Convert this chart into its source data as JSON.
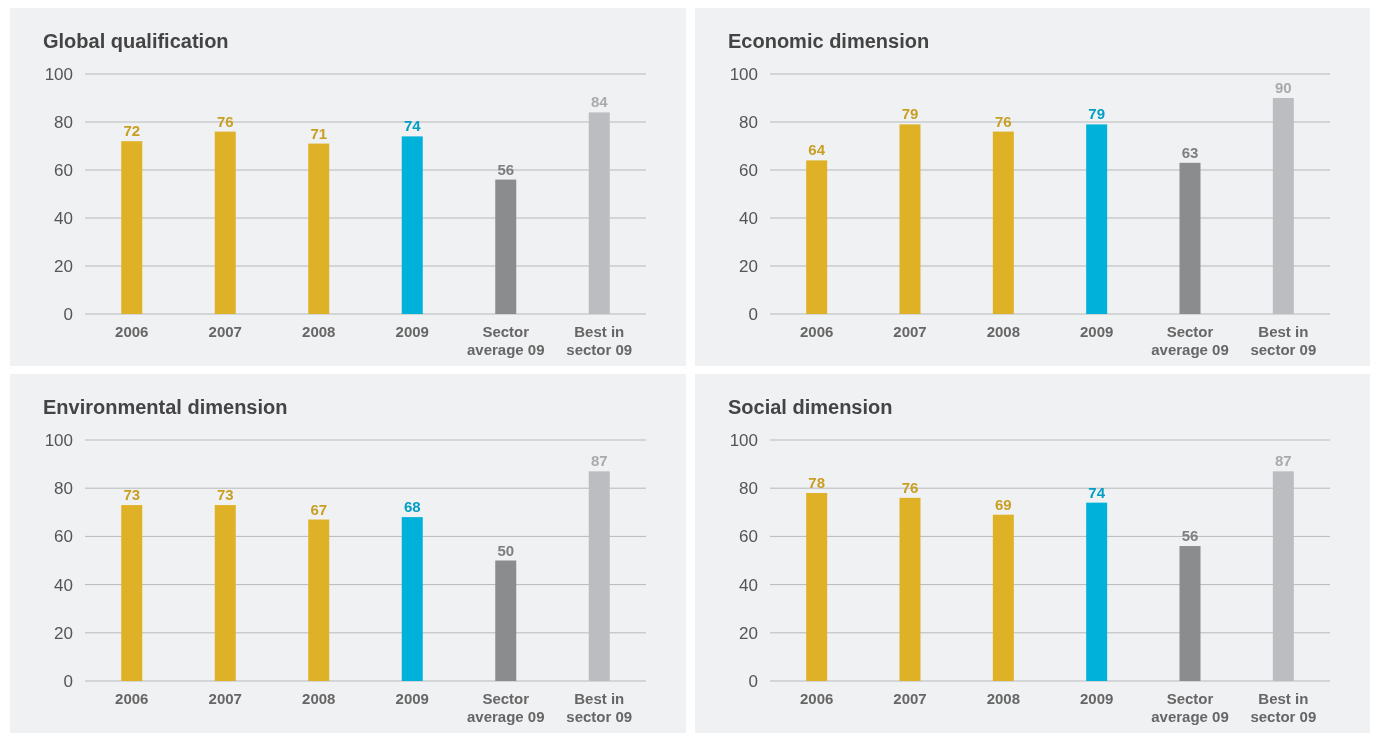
{
  "chart_data": [
    {
      "type": "bar",
      "title": "Global qualification",
      "categories": [
        "2006",
        "2007",
        "2008",
        "2009",
        "Sector average 09",
        "Best in sector 09"
      ],
      "values": [
        72,
        76,
        71,
        74,
        56,
        84
      ],
      "colors": [
        "#dfb127",
        "#dfb127",
        "#dfb127",
        "#00b1d9",
        "#8b8c8e",
        "#bcbdc0"
      ],
      "ylim": [
        0,
        100
      ],
      "yticks": [
        0,
        20,
        40,
        60,
        80,
        100
      ],
      "grid": "y",
      "data_labels": true
    },
    {
      "type": "bar",
      "title": "Economic dimension",
      "categories": [
        "2006",
        "2007",
        "2008",
        "2009",
        "Sector average 09",
        "Best in sector 09"
      ],
      "values": [
        64,
        79,
        76,
        79,
        63,
        90
      ],
      "colors": [
        "#dfb127",
        "#dfb127",
        "#dfb127",
        "#00b1d9",
        "#8b8c8e",
        "#bcbdc0"
      ],
      "ylim": [
        0,
        100
      ],
      "yticks": [
        0,
        20,
        40,
        60,
        80,
        100
      ],
      "grid": "y",
      "data_labels": true
    },
    {
      "type": "bar",
      "title": "Environmental dimension",
      "categories": [
        "2006",
        "2007",
        "2008",
        "2009",
        "Sector average 09",
        "Best in sector 09"
      ],
      "values": [
        73,
        73,
        67,
        68,
        50,
        87
      ],
      "colors": [
        "#dfb127",
        "#dfb127",
        "#dfb127",
        "#00b1d9",
        "#8b8c8e",
        "#bcbdc0"
      ],
      "ylim": [
        0,
        100
      ],
      "yticks": [
        0,
        20,
        40,
        60,
        80,
        100
      ],
      "grid": "y",
      "data_labels": true
    },
    {
      "type": "bar",
      "title": "Social dimension",
      "categories": [
        "2006",
        "2007",
        "2008",
        "2009",
        "Sector average 09",
        "Best in sector 09"
      ],
      "values": [
        78,
        76,
        69,
        74,
        56,
        87
      ],
      "colors": [
        "#dfb127",
        "#dfb127",
        "#dfb127",
        "#00b1d9",
        "#8b8c8e",
        "#bcbdc0"
      ],
      "ylim": [
        0,
        100
      ],
      "yticks": [
        0,
        20,
        40,
        60,
        80,
        100
      ],
      "grid": "y",
      "data_labels": true
    }
  ]
}
